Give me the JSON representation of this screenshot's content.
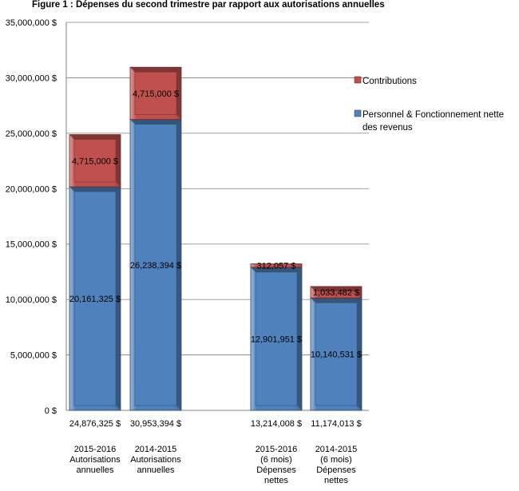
{
  "title": "Figure 1 : Dépenses du second  trimestre par rapport aux autorisations annuelles",
  "chart_data": {
    "type": "bar",
    "stacked": true,
    "title": "Figure 1 : Dépenses du second  trimestre par rapport aux autorisations annuelles",
    "ylim": [
      0,
      35000000
    ],
    "y_ticks": [
      "0 $",
      "5,000,000 $",
      "10,000,000 $",
      "15,000,000 $",
      "20,000,000 $",
      "25,000,000 $",
      "30,000,000 $",
      "35,000,000 $"
    ],
    "grid": true,
    "legend_position": "right",
    "categories": [
      [
        "2015-2016",
        "Autorisations",
        "annuelles"
      ],
      [
        "2014-2015",
        "Autorisations",
        "annuelles"
      ],
      [
        "2015-2016",
        "(6 mois)",
        "Dépenses",
        "nettes"
      ],
      [
        "2014-2015",
        "(6 mois)",
        "Dépenses",
        "nettes"
      ]
    ],
    "series": [
      {
        "name": "Personnel & Fonctionnement nette des revenus",
        "color": "#4f81bd",
        "values": [
          20161325,
          26238394,
          12901951,
          10140531
        ],
        "labels": [
          "20,161,325 $",
          "26,238,394 $",
          "12,901,951 $",
          "10,140,531 $"
        ]
      },
      {
        "name": "Contributions",
        "color": "#c0504d",
        "values": [
          4715000,
          4715000,
          312057,
          1033482
        ],
        "labels": [
          "4,715,000 $",
          "4,715,000 $",
          "312,057 $",
          "1,033,482 $"
        ]
      }
    ],
    "totals": [
      "24,876,325 $",
      "30,953,394 $",
      "13,214,008 $",
      "11,174,013 $"
    ],
    "legend_entries": [
      {
        "label": [
          "Contributions"
        ],
        "color": "#c0504d"
      },
      {
        "label": [
          "Personnel & Fonctionnement nette",
          "des revenus"
        ],
        "color": "#4f81bd"
      }
    ]
  }
}
